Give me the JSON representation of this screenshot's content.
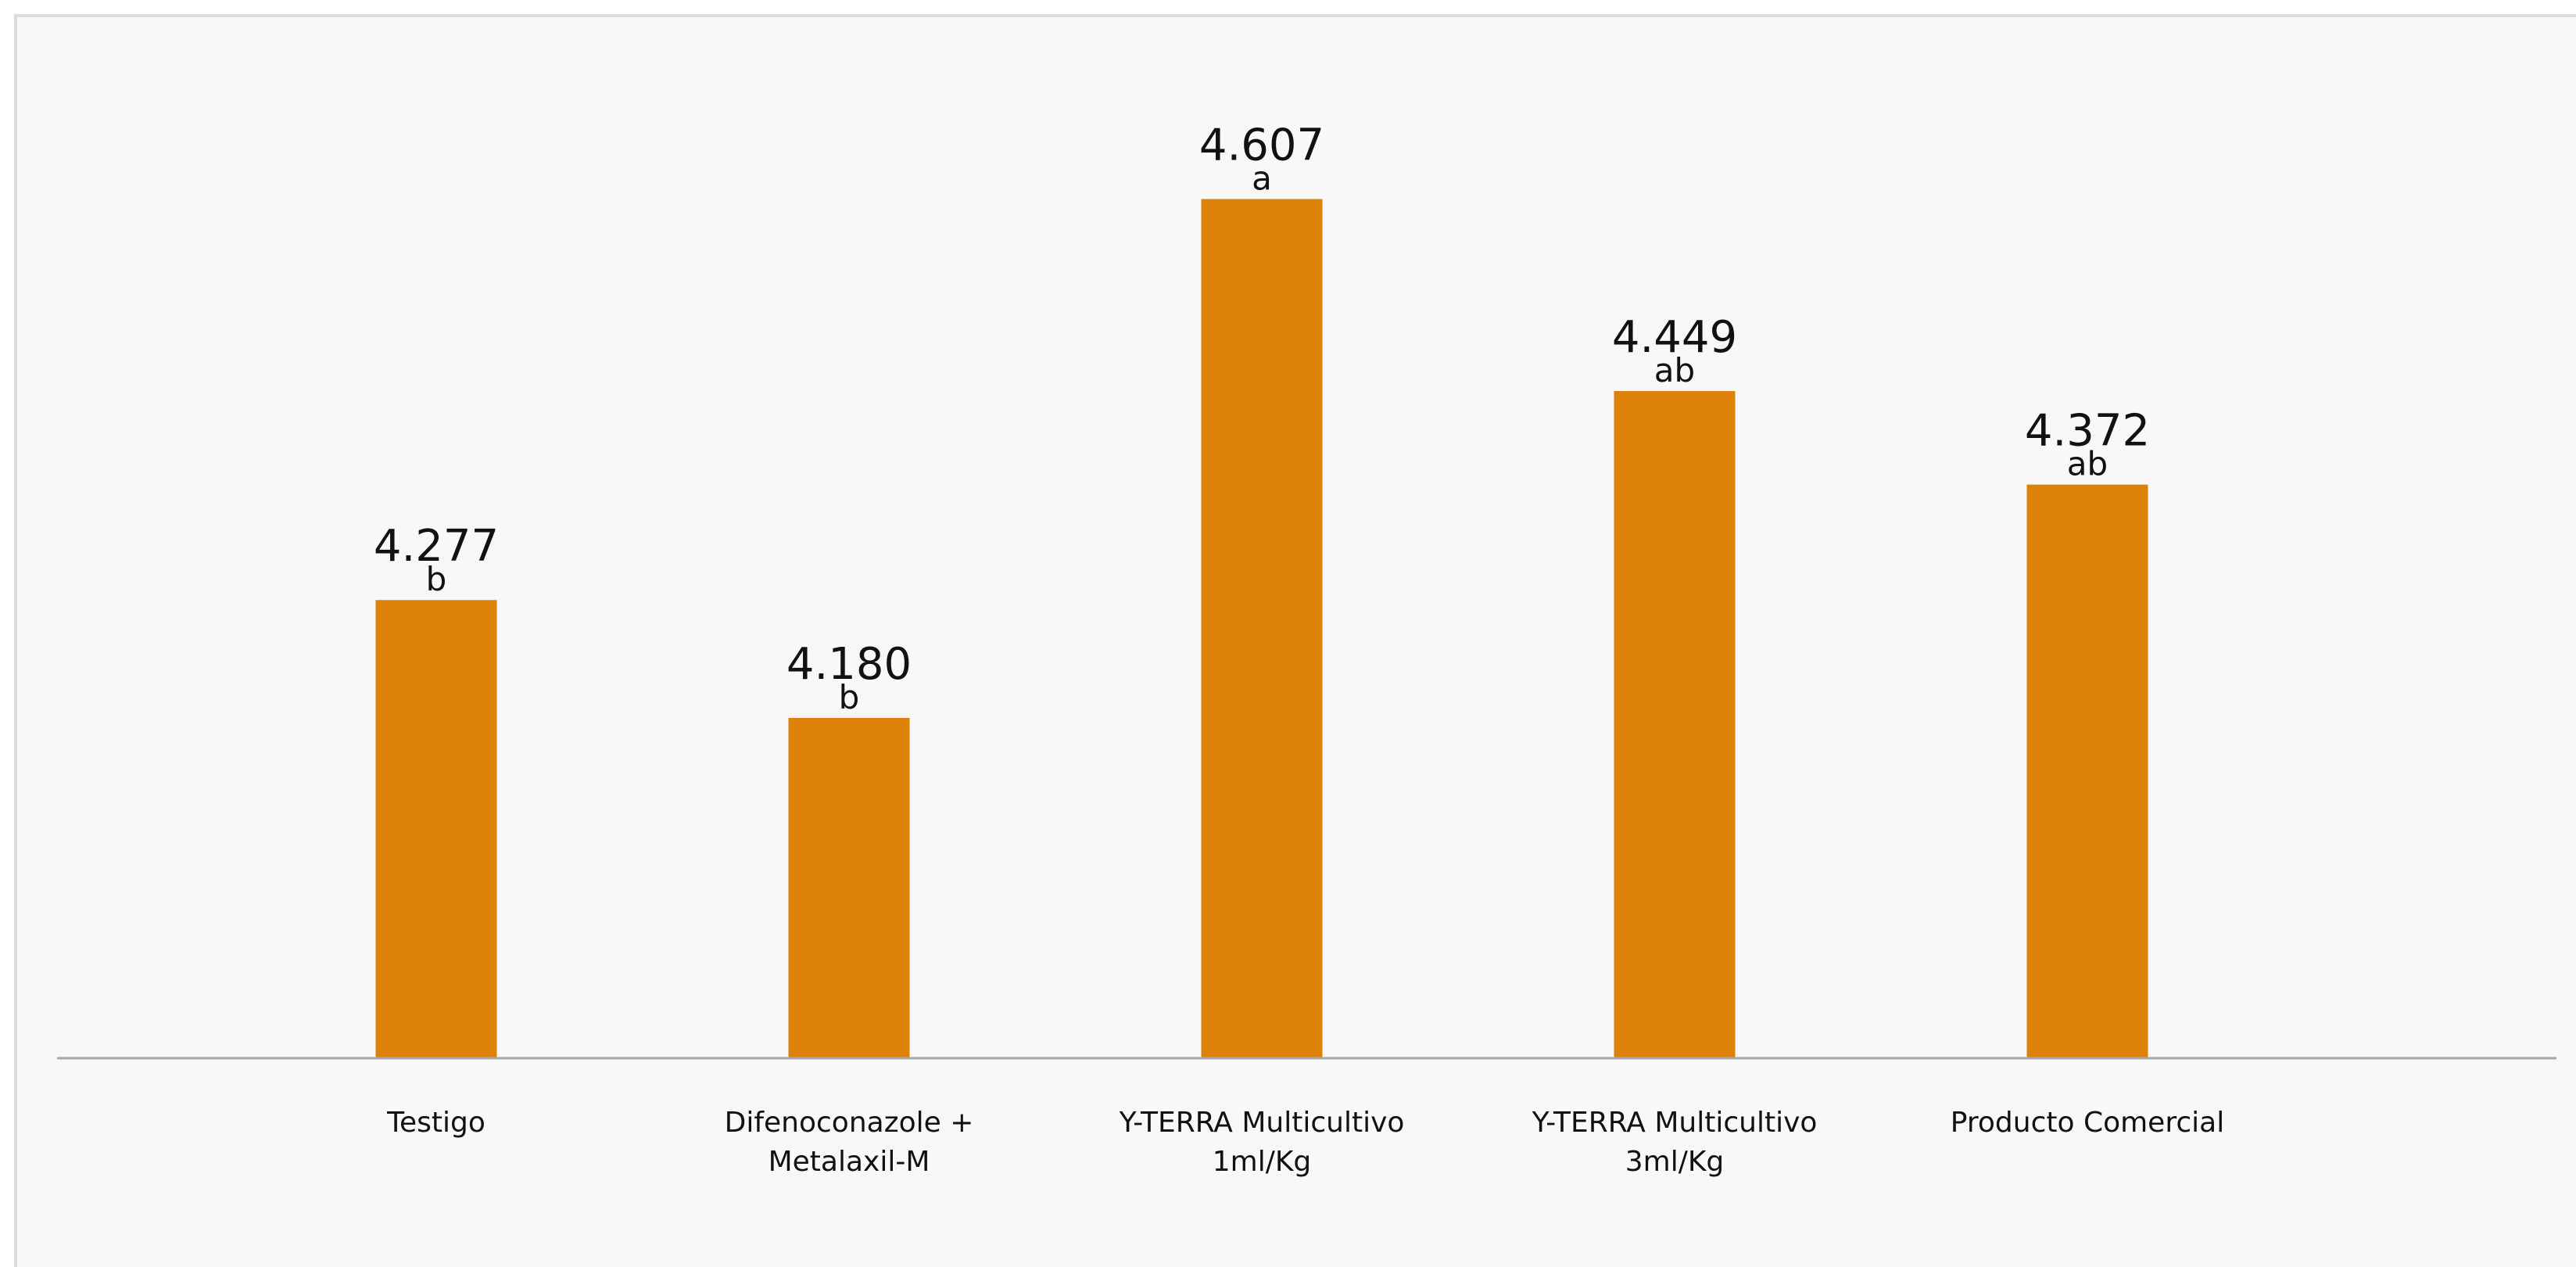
{
  "chart_data": {
    "type": "bar",
    "title": "",
    "xlabel": "",
    "ylabel": "",
    "categories": [
      [
        "Testigo"
      ],
      [
        "Difenoconazole +",
        "Metalaxil-M"
      ],
      [
        "Y-TERRA Multicultivo",
        "1ml/Kg"
      ],
      [
        "Y-TERRA Multicultivo",
        "3ml/Kg"
      ],
      [
        "Producto Comercial"
      ]
    ],
    "values": [
      4.277,
      4.18,
      4.607,
      4.449,
      4.372
    ],
    "value_labels": [
      "4.277",
      "4.180",
      "4.607",
      "4.449",
      "4.372"
    ],
    "significance_letters": [
      "b",
      "b",
      "a",
      "ab",
      "ab"
    ],
    "ylim": [
      3.9,
      4.7
    ],
    "grid": false,
    "legend": "none",
    "colors": {
      "bar": "#dd8109",
      "axis": "#a6a6a6",
      "text": "#111111"
    }
  }
}
